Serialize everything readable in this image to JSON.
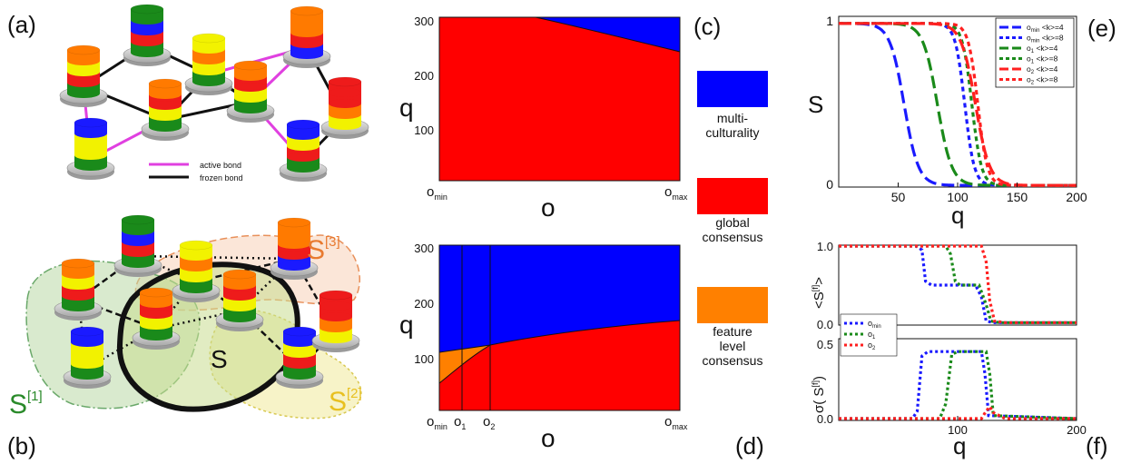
{
  "panel_labels": {
    "a": "(a)",
    "b": "(b)",
    "c": "(c)",
    "d": "(d)",
    "e": "(e)",
    "f": "(f)"
  },
  "panel_a": {
    "legend": {
      "active": "active bond",
      "frozen": "frozen bond"
    },
    "colors": {
      "active": "#e040e0",
      "frozen": "#111111"
    }
  },
  "panel_b": {
    "labels": {
      "s": "S",
      "s1": "S",
      "s1_sup": "[1]",
      "s2": "S",
      "s2_sup": "[2]",
      "s3": "S",
      "s3_sup": "[3]"
    },
    "colors": {
      "s1": "#2a8a2a",
      "s2": "#e8c020",
      "s3": "#e87a30"
    }
  },
  "phase_diagrams": {
    "colors": {
      "multiculturality": "#0000ff",
      "global_consensus": "#ff0000",
      "feature_level_consensus": "#ff8000"
    },
    "legend": [
      {
        "label_1": "multi-",
        "label_2": "culturality",
        "color": "#0000ff"
      },
      {
        "label_1": "global",
        "label_2": "consensus",
        "color": "#ff0000"
      },
      {
        "label_1": "feature",
        "label_2": "level",
        "label_3": "consensus",
        "color": "#ff8000"
      }
    ],
    "c": {
      "ylabel": "q",
      "xlabel": "o",
      "yticks": [
        "300",
        "200",
        "100"
      ],
      "x_left": "o",
      "x_left_sub": "min",
      "x_right": "o",
      "x_right_sub": "max"
    },
    "d": {
      "ylabel": "q",
      "xlabel": "o",
      "yticks": [
        "300",
        "200",
        "100"
      ],
      "x0": "o",
      "x0_sub": "min",
      "x1": "o",
      "x1_sub": "1",
      "x2": "o",
      "x2_sub": "2",
      "x_right": "o",
      "x_right_sub": "max"
    }
  },
  "chart_data": [
    {
      "type": "line",
      "panel": "e",
      "xlabel": "q",
      "ylabel": "S",
      "xlim": [
        0,
        200
      ],
      "ylim": [
        0,
        1
      ],
      "xticks": [
        "50",
        "100",
        "150",
        "200"
      ],
      "yticks": [
        "0",
        "1"
      ],
      "legend_position": "top-right",
      "series": [
        {
          "name": "o_min <k>=4",
          "color": "#1a1aff",
          "dash": "long",
          "transition_q": 55
        },
        {
          "name": "o_min <k>=8",
          "color": "#1a1aff",
          "dash": "short",
          "transition_q": 106
        },
        {
          "name": "o_1 <k>=4",
          "color": "#1a8a1a",
          "dash": "long",
          "transition_q": 83
        },
        {
          "name": "o_1 <k>=8",
          "color": "#1a8a1a",
          "dash": "short",
          "transition_q": 112
        },
        {
          "name": "o_2 <k>=4",
          "color": "#ff2020",
          "dash": "long",
          "transition_q": 115
        },
        {
          "name": "o_2 <k>=8",
          "color": "#ff2020",
          "dash": "short",
          "transition_q": 117
        }
      ],
      "legend_labels": [
        {
          "main": "o",
          "sub": "min",
          "rest": " <k>=4"
        },
        {
          "main": "o",
          "sub": "min",
          "rest": " <k>=8"
        },
        {
          "main": "o",
          "sub": "1",
          "rest": " <k>=4"
        },
        {
          "main": "o",
          "sub": "1",
          "rest": " <k>=8"
        },
        {
          "main": "o",
          "sub": "2",
          "rest": " <k>=4"
        },
        {
          "main": "o",
          "sub": "2",
          "rest": " <k>=8"
        }
      ]
    },
    {
      "type": "line",
      "panel": "f-top",
      "ylabel": "<S^[f]>",
      "ylim": [
        0,
        1
      ],
      "xlim": [
        0,
        200
      ],
      "yticks": [
        "1.0",
        "0.5",
        "0.0"
      ],
      "series": [
        {
          "name": "o_min",
          "color": "#1a1aff",
          "values": [
            [
              0,
              1.0
            ],
            [
              65,
              1.0
            ],
            [
              70,
              0.95
            ],
            [
              73,
              0.55
            ],
            [
              78,
              0.5
            ],
            [
              115,
              0.5
            ],
            [
              120,
              0.35
            ],
            [
              124,
              0.04
            ],
            [
              130,
              0.02
            ],
            [
              200,
              0.02
            ]
          ]
        },
        {
          "name": "o_1",
          "color": "#1a8a1a",
          "values": [
            [
              0,
              1.0
            ],
            [
              90,
              1.0
            ],
            [
              94,
              0.9
            ],
            [
              98,
              0.55
            ],
            [
              102,
              0.5
            ],
            [
              118,
              0.5
            ],
            [
              124,
              0.25
            ],
            [
              128,
              0.04
            ],
            [
              135,
              0.02
            ],
            [
              200,
              0.02
            ]
          ]
        },
        {
          "name": "o_2",
          "color": "#ff2020",
          "values": [
            [
              0,
              1.0
            ],
            [
              120,
              1.0
            ],
            [
              124,
              0.8
            ],
            [
              127,
              0.3
            ],
            [
              131,
              0.04
            ],
            [
              140,
              0.02
            ],
            [
              200,
              0.02
            ]
          ]
        }
      ]
    },
    {
      "type": "line",
      "panel": "f-bottom",
      "xlabel": "q",
      "ylabel": "σ(S^[f])",
      "xlim": [
        0,
        200
      ],
      "ylim": [
        0,
        0.5
      ],
      "xticks": [
        "100",
        "200"
      ],
      "yticks": [
        "0.5",
        "0.0"
      ],
      "series": [
        {
          "name": "o_min",
          "color": "#1a1aff",
          "values": [
            [
              0,
              0.0
            ],
            [
              62,
              0.0
            ],
            [
              66,
              0.05
            ],
            [
              70,
              0.42
            ],
            [
              75,
              0.45
            ],
            [
              120,
              0.45
            ],
            [
              123,
              0.3
            ],
            [
              126,
              0.02
            ],
            [
              200,
              0.0
            ]
          ]
        },
        {
          "name": "o_1",
          "color": "#1a8a1a",
          "values": [
            [
              0,
              0.0
            ],
            [
              85,
              0.0
            ],
            [
              90,
              0.1
            ],
            [
              95,
              0.43
            ],
            [
              100,
              0.45
            ],
            [
              124,
              0.45
            ],
            [
              127,
              0.3
            ],
            [
              130,
              0.02
            ],
            [
              200,
              0.0
            ]
          ]
        },
        {
          "name": "o_2",
          "color": "#ff2020",
          "values": [
            [
              0,
              0.0
            ],
            [
              120,
              0.0
            ],
            [
              124,
              0.05
            ],
            [
              127,
              0.08
            ],
            [
              130,
              0.04
            ],
            [
              140,
              0.0
            ],
            [
              200,
              0.0
            ]
          ]
        }
      ],
      "legend_labels": [
        {
          "main": "o",
          "sub": "min"
        },
        {
          "main": "o",
          "sub": "1"
        },
        {
          "main": "o",
          "sub": "2"
        }
      ]
    }
  ]
}
